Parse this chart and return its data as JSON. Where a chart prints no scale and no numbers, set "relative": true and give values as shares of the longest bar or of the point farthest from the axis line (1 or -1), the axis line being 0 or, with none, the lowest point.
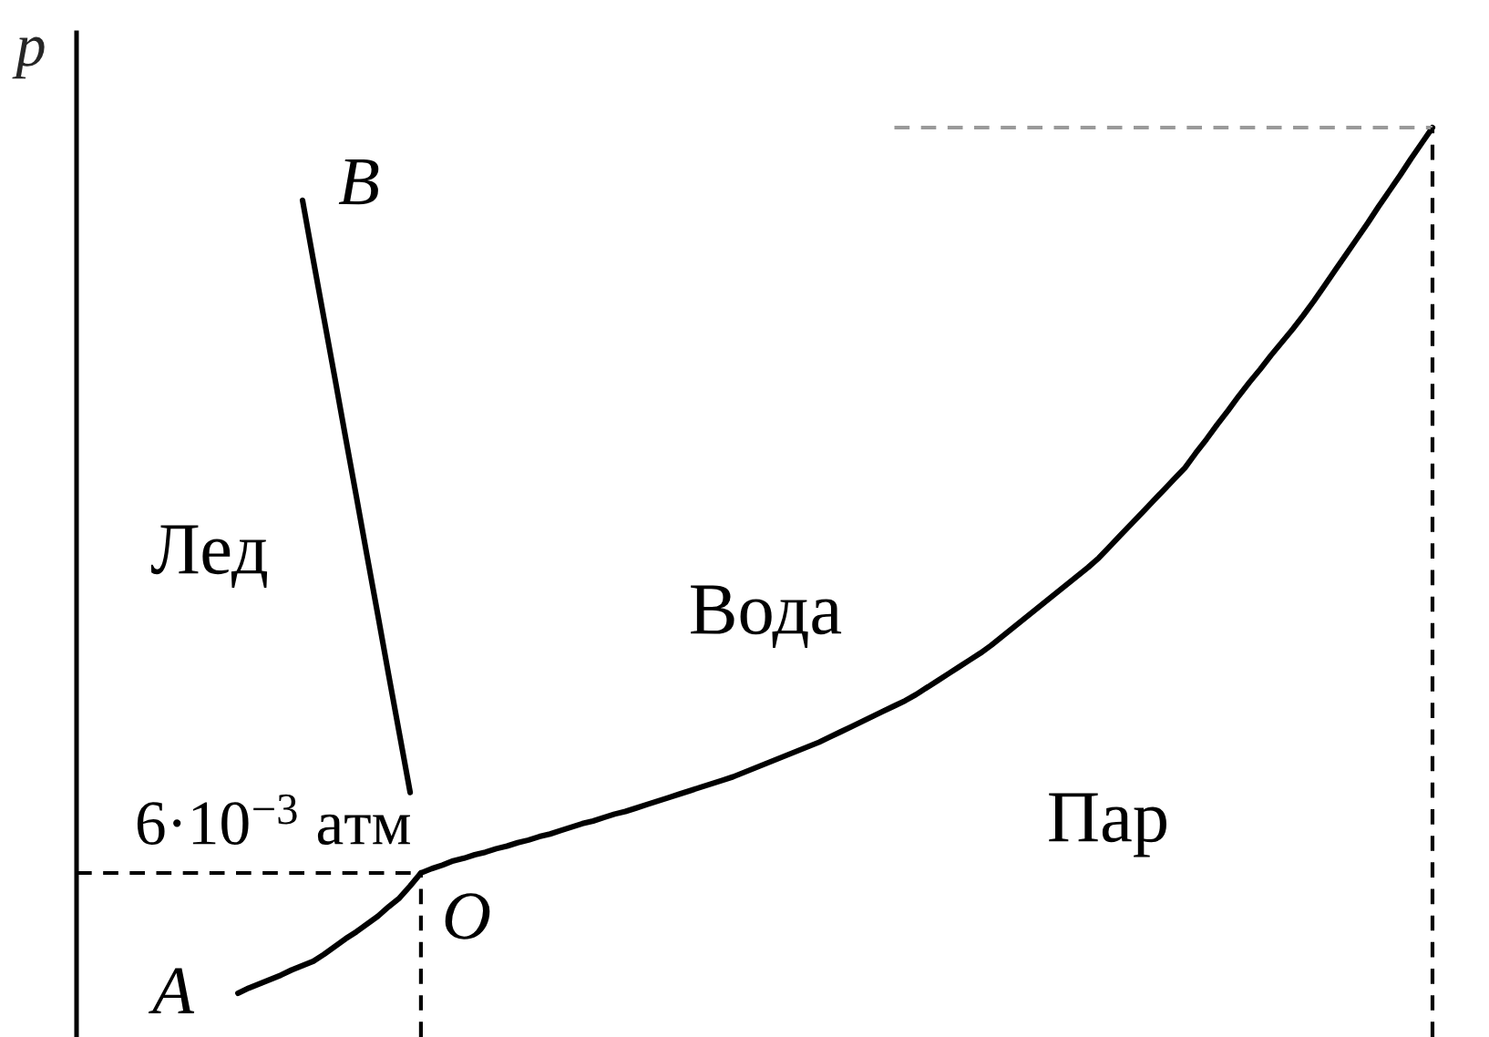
{
  "chart_data": {
    "type": "line",
    "relative": true,
    "ylabel": "p",
    "line_style": "solid",
    "categories": [
      null,
      null,
      null,
      null,
      null,
      null,
      null,
      null,
      null,
      null,
      null,
      null,
      null,
      null,
      null,
      null,
      null,
      null,
      null,
      null,
      null,
      null,
      null,
      null,
      null,
      null,
      null,
      null,
      null,
      null,
      null,
      null,
      null,
      null,
      null,
      null,
      null,
      null,
      null,
      null,
      null,
      null,
      null,
      null,
      null,
      null,
      null,
      null,
      null,
      null,
      null,
      null,
      null,
      null,
      null,
      null,
      null,
      null,
      null,
      null,
      null,
      null,
      null,
      null,
      null,
      null,
      null,
      null,
      null,
      null,
      null,
      null,
      null,
      null,
      null,
      null,
      null,
      null,
      null,
      null,
      null,
      null,
      null,
      null,
      null,
      null,
      null,
      null,
      null,
      null,
      null,
      null,
      null,
      null,
      null,
      null,
      null,
      null,
      null,
      null,
      null,
      null,
      null,
      null,
      null,
      null,
      null,
      null,
      null,
      null,
      null,
      null,
      null,
      null,
      null,
      null,
      null,
      null,
      null,
      null,
      null,
      null,
      null,
      null,
      null,
      null,
      null,
      null,
      null,
      null
    ],
    "series": [
      {
        "color": "#000000",
        "values": [
          null,
          null,
          null,
          null,
          null,
          null,
          null,
          null,
          null,
          null,
          null,
          null,
          null,
          null,
          null,
          0,
          0.006,
          0.011,
          0.016,
          0.021,
          0.027,
          0.032,
          0.037,
          0.045,
          0.054,
          0.063,
          0.071,
          0.08,
          0.089,
          0.1,
          0.11,
          0.124,
          0.139,
          null,
          null,
          null,
          null,
          null,
          null,
          null,
          null,
          null,
          null,
          null,
          null,
          null,
          null,
          null,
          null,
          null,
          null,
          null,
          null,
          null,
          null,
          null,
          null,
          null,
          null,
          null,
          null,
          null,
          null,
          null,
          null,
          null,
          null,
          null,
          null,
          null,
          null,
          null,
          null,
          null,
          null,
          null,
          null,
          null,
          null,
          null,
          null,
          null,
          null,
          null,
          null,
          null,
          null,
          null,
          null,
          null,
          null,
          null,
          null,
          null,
          null,
          null,
          null,
          null,
          null,
          null,
          null,
          null,
          null,
          null,
          null,
          null,
          null,
          null,
          null,
          null,
          null,
          null,
          null,
          null,
          null,
          null,
          null,
          null,
          null,
          null,
          null,
          null,
          null,
          null,
          null,
          null,
          null,
          null,
          null,
          null
        ]
      },
      {
        "color": "#000000",
        "values": [
          null,
          null,
          null,
          null,
          null,
          null,
          null,
          null,
          null,
          null,
          null,
          null,
          null,
          null,
          null,
          null,
          null,
          null,
          null,
          null,
          null,
          0.916,
          0.847,
          0.779,
          0.711,
          0.642,
          0.574,
          0.505,
          0.437,
          0.368,
          0.3,
          0.232,
          null,
          null,
          null,
          null,
          null,
          null,
          null,
          null,
          null,
          null,
          null,
          null,
          null,
          null,
          null,
          null,
          null,
          null,
          null,
          null,
          null,
          null,
          null,
          null,
          null,
          null,
          null,
          null,
          null,
          null,
          null,
          null,
          null,
          null,
          null,
          null,
          null,
          null,
          null,
          null,
          null,
          null,
          null,
          null,
          null,
          null,
          null,
          null,
          null,
          null,
          null,
          null,
          null,
          null,
          null,
          null,
          null,
          null,
          null,
          null,
          null,
          null,
          null,
          null,
          null,
          null,
          null,
          null,
          null,
          null,
          null,
          null,
          null,
          null,
          null,
          null,
          null,
          null,
          null,
          null,
          null,
          null,
          null,
          null,
          null,
          null,
          null,
          null,
          null,
          null,
          null,
          null,
          null,
          null,
          null,
          null,
          null,
          null
        ]
      },
      {
        "color": "#000000",
        "values": [
          null,
          null,
          null,
          null,
          null,
          null,
          null,
          null,
          null,
          null,
          null,
          null,
          null,
          null,
          null,
          null,
          null,
          null,
          null,
          null,
          null,
          null,
          null,
          null,
          null,
          null,
          null,
          null,
          null,
          null,
          null,
          null,
          0.139,
          0.144,
          0.148,
          0.153,
          0.156,
          0.16,
          0.163,
          0.167,
          0.17,
          0.174,
          0.177,
          0.181,
          0.184,
          0.188,
          0.192,
          0.196,
          0.199,
          0.203,
          0.207,
          0.21,
          0.214,
          0.218,
          0.222,
          0.226,
          0.23,
          0.234,
          0.238,
          0.242,
          0.246,
          0.25,
          0.255,
          0.26,
          0.265,
          0.27,
          0.275,
          0.28,
          0.285,
          0.29,
          0.296,
          0.302,
          0.308,
          0.314,
          0.32,
          0.326,
          0.332,
          0.338,
          0.345,
          0.353,
          0.361,
          0.369,
          0.377,
          0.385,
          0.393,
          0.402,
          0.412,
          0.422,
          0.432,
          0.442,
          0.452,
          0.462,
          0.472,
          0.482,
          0.492,
          0.503,
          0.516,
          0.529,
          0.542,
          0.555,
          0.568,
          0.581,
          0.594,
          0.607,
          0.624,
          0.64,
          0.657,
          0.673,
          0.69,
          0.706,
          0.721,
          0.737,
          0.752,
          0.767,
          0.783,
          0.8,
          0.818,
          0.836,
          0.854,
          0.872,
          0.89,
          0.909,
          0.927,
          0.945,
          0.964,
          0.982,
          1.0,
          null,
          null,
          null
        ]
      },
      {
        "color": "#000000",
        "line_style": "dashed",
        "values": [
          0.139,
          0.139,
          0.139,
          0.139,
          0.139,
          0.139,
          0.139,
          0.139,
          0.139,
          0.139,
          0.139,
          0.139,
          0.139,
          0.139,
          0.139,
          0.139,
          0.139,
          0.139,
          0.139,
          0.139,
          0.139,
          0.139,
          0.139,
          0.139,
          0.139,
          0.139,
          0.139,
          0.139,
          0.139,
          0.139,
          0.139,
          0.139,
          0.139,
          null,
          null,
          null,
          null,
          null,
          null,
          null,
          null,
          null,
          null,
          null,
          null,
          null,
          null,
          null,
          null,
          null,
          null,
          null,
          null,
          null,
          null,
          null,
          null,
          null,
          null,
          null,
          null,
          null,
          null,
          null,
          null,
          null,
          null,
          null,
          null,
          null,
          null,
          null,
          null,
          null,
          null,
          null,
          null,
          null,
          null,
          null,
          null,
          null,
          null,
          null,
          null,
          null,
          null,
          null,
          null,
          null,
          null,
          null,
          null,
          null,
          null,
          null,
          null,
          null,
          null,
          null,
          null,
          null,
          null,
          null,
          null,
          null,
          null,
          null,
          null,
          null,
          null,
          null,
          null,
          null,
          null,
          null,
          null,
          null,
          null,
          null,
          null,
          null,
          null,
          null,
          null,
          null,
          null,
          null,
          null,
          null
        ]
      },
      {
        "color": "#9a9a9a",
        "line_style": "dashed",
        "values": [
          null,
          null,
          null,
          null,
          null,
          null,
          null,
          null,
          null,
          null,
          null,
          null,
          null,
          null,
          null,
          null,
          null,
          null,
          null,
          null,
          null,
          null,
          null,
          null,
          null,
          null,
          null,
          null,
          null,
          null,
          null,
          null,
          null,
          null,
          null,
          null,
          null,
          null,
          null,
          null,
          null,
          null,
          null,
          null,
          null,
          null,
          null,
          null,
          null,
          null,
          null,
          null,
          null,
          null,
          null,
          null,
          null,
          null,
          null,
          null,
          null,
          null,
          null,
          null,
          null,
          null,
          null,
          null,
          null,
          null,
          null,
          null,
          null,
          null,
          null,
          null,
          1.0,
          1.0,
          1.0,
          1.0,
          1.0,
          1.0,
          1.0,
          1.0,
          1.0,
          1.0,
          1.0,
          1.0,
          1.0,
          1.0,
          1.0,
          1.0,
          1.0,
          1.0,
          1.0,
          1.0,
          1.0,
          1.0,
          1.0,
          1.0,
          1.0,
          1.0,
          1.0,
          1.0,
          1.0,
          1.0,
          1.0,
          1.0,
          1.0,
          1.0,
          1.0,
          1.0,
          1.0,
          1.0,
          1.0,
          1.0,
          1.0,
          1.0,
          1.0,
          1.0,
          1.0,
          1.0,
          1.0,
          1.0,
          1.0,
          1.0,
          1.0,
          null,
          null,
          null
        ]
      }
    ],
    "annotations": [
      "Лед",
      "Вода",
      "Пар",
      "6·10$^{−3}$ атм",
      "A",
      "B",
      "O"
    ]
  }
}
